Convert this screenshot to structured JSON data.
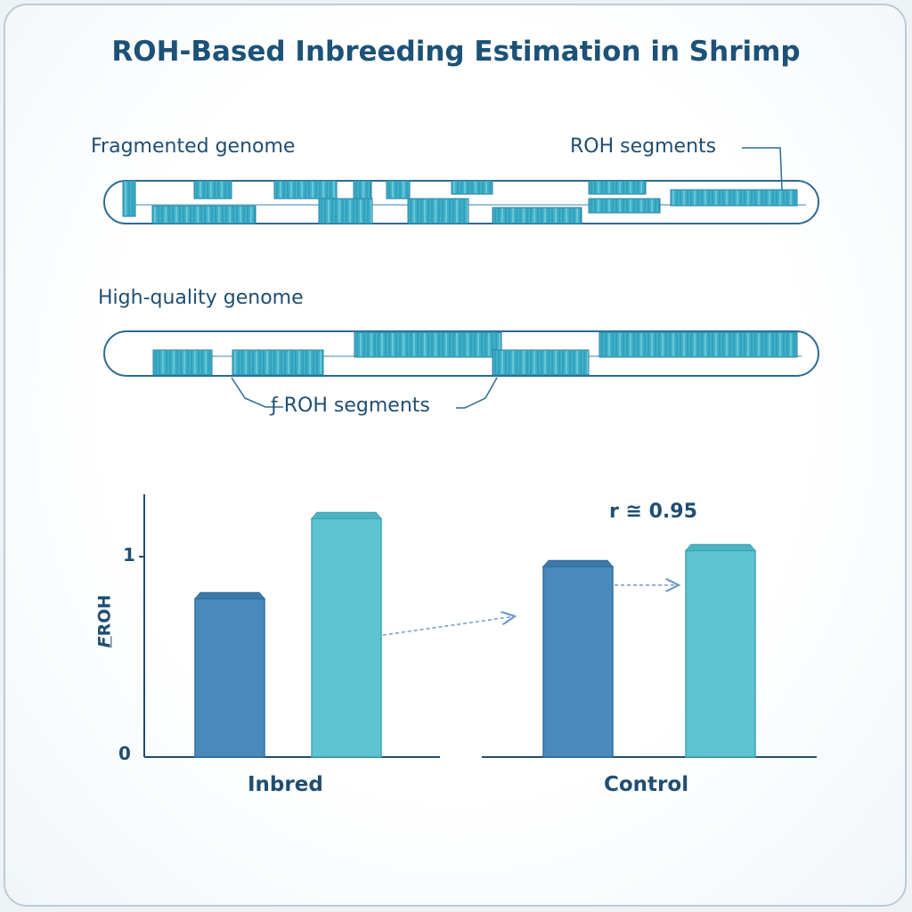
{
  "title": "ROH-Based Inbreeding Estimation in Shrimp",
  "diagram": {
    "fragmented_label": "Fragmented genome",
    "roh_label_top": "ROH segments",
    "highquality_label": "High-quality genome",
    "roh_label_bottom": "ROH segments",
    "roh_label_bottom_prefix": "ƒ"
  },
  "colors": {
    "dark_bar": "#4a89bc",
    "light_bar": "#5ec4d2",
    "segment": "#3fb0c8",
    "text": "#1f4e72"
  },
  "chart_data": {
    "type": "bar",
    "ylabel": "F_ROH",
    "ylabel_main": "F",
    "ylabel_sub": "ROH",
    "yticks": [
      "0",
      "1"
    ],
    "ylim": [
      0,
      1.3
    ],
    "annotation": "r ≅ 0.95",
    "groups": [
      {
        "name": "Inbred",
        "values": [
          0.79,
          1.19
        ]
      },
      {
        "name": "Control",
        "values": [
          0.95,
          1.03
        ]
      }
    ],
    "series": [
      {
        "name": "series-dark",
        "color": "#4a89bc"
      },
      {
        "name": "series-light",
        "color": "#5ec4d2"
      }
    ]
  }
}
